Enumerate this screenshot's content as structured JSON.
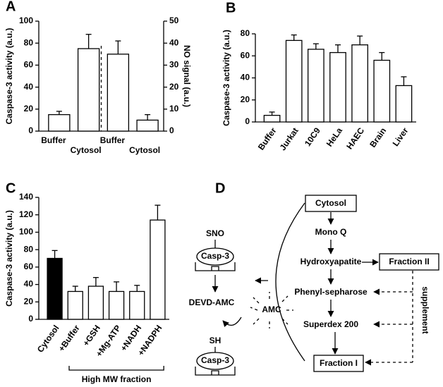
{
  "chart_data": [
    {
      "type": "bar",
      "panel": "A",
      "categories": [
        "Buffer",
        "Cytosol",
        "Buffer",
        "Cytosol"
      ],
      "ylabel": "Caspase-3 activity (a.u.)",
      "y2label": "NO signal (a.u.)",
      "ylim": [
        0,
        100
      ],
      "yticks": [
        0,
        20,
        40,
        60,
        80,
        100
      ],
      "y2lim": [
        0,
        50
      ],
      "y2ticks": [
        0,
        10,
        20,
        30,
        40,
        50
      ],
      "series": [
        {
          "color": "#ffffff",
          "values": [
            15,
            75,
            null,
            null
          ],
          "errors": [
            3,
            13,
            null,
            null
          ]
        },
        {
          "color": "#ffffff",
          "axis": "y2",
          "values": [
            null,
            null,
            35,
            5
          ],
          "errors": [
            null,
            null,
            6,
            2.5
          ]
        }
      ]
    },
    {
      "type": "bar",
      "panel": "B",
      "categories": [
        "Buffer",
        "Jurkat",
        "10C9",
        "HeLa",
        "HAEC",
        "Brain",
        "Liver"
      ],
      "ylabel": "Caspase-3 activity (a.u.)",
      "ylim": [
        0,
        80
      ],
      "yticks": [
        0,
        20,
        40,
        60,
        80
      ],
      "series": [
        {
          "color": "#ffffff",
          "values": [
            6,
            74,
            66,
            63,
            70,
            56,
            33
          ],
          "errors": [
            3,
            5,
            5,
            7,
            8,
            7,
            8
          ]
        }
      ]
    },
    {
      "type": "bar",
      "panel": "C",
      "categories": [
        "Cytosol",
        "+Buffer",
        "+GSH",
        "+Mg-ATP",
        "+NADH",
        "+NADPH"
      ],
      "ylabel": "Caspase-3 activity (a.u.)",
      "bracket_label": "High MW fraction",
      "ylim": [
        0,
        140
      ],
      "yticks": [
        0,
        20,
        40,
        60,
        80,
        100,
        120,
        140
      ],
      "series": [
        {
          "color": "#ffffff",
          "colors": [
            "#000000",
            "#ffffff",
            "#ffffff",
            "#ffffff",
            "#ffffff",
            "#ffffff"
          ],
          "values": [
            70,
            32,
            38,
            32,
            32,
            114
          ],
          "errors": [
            9,
            6,
            10,
            11,
            7,
            17
          ]
        }
      ]
    }
  ],
  "diagram": {
    "panel": "D",
    "steps": [
      "Cytosol",
      "Mono Q",
      "Hydroxyapatite",
      "Phenyl-sepharose",
      "Superdex 200",
      "Fraction I"
    ],
    "fraction2": "Fraction II",
    "supplement": "supplement",
    "sno": "SNO",
    "casp_top": "Casp-3",
    "substrate": "DEVD-AMC",
    "product": "AMC",
    "sh": "SH",
    "casp_bottom": "Casp-3"
  }
}
